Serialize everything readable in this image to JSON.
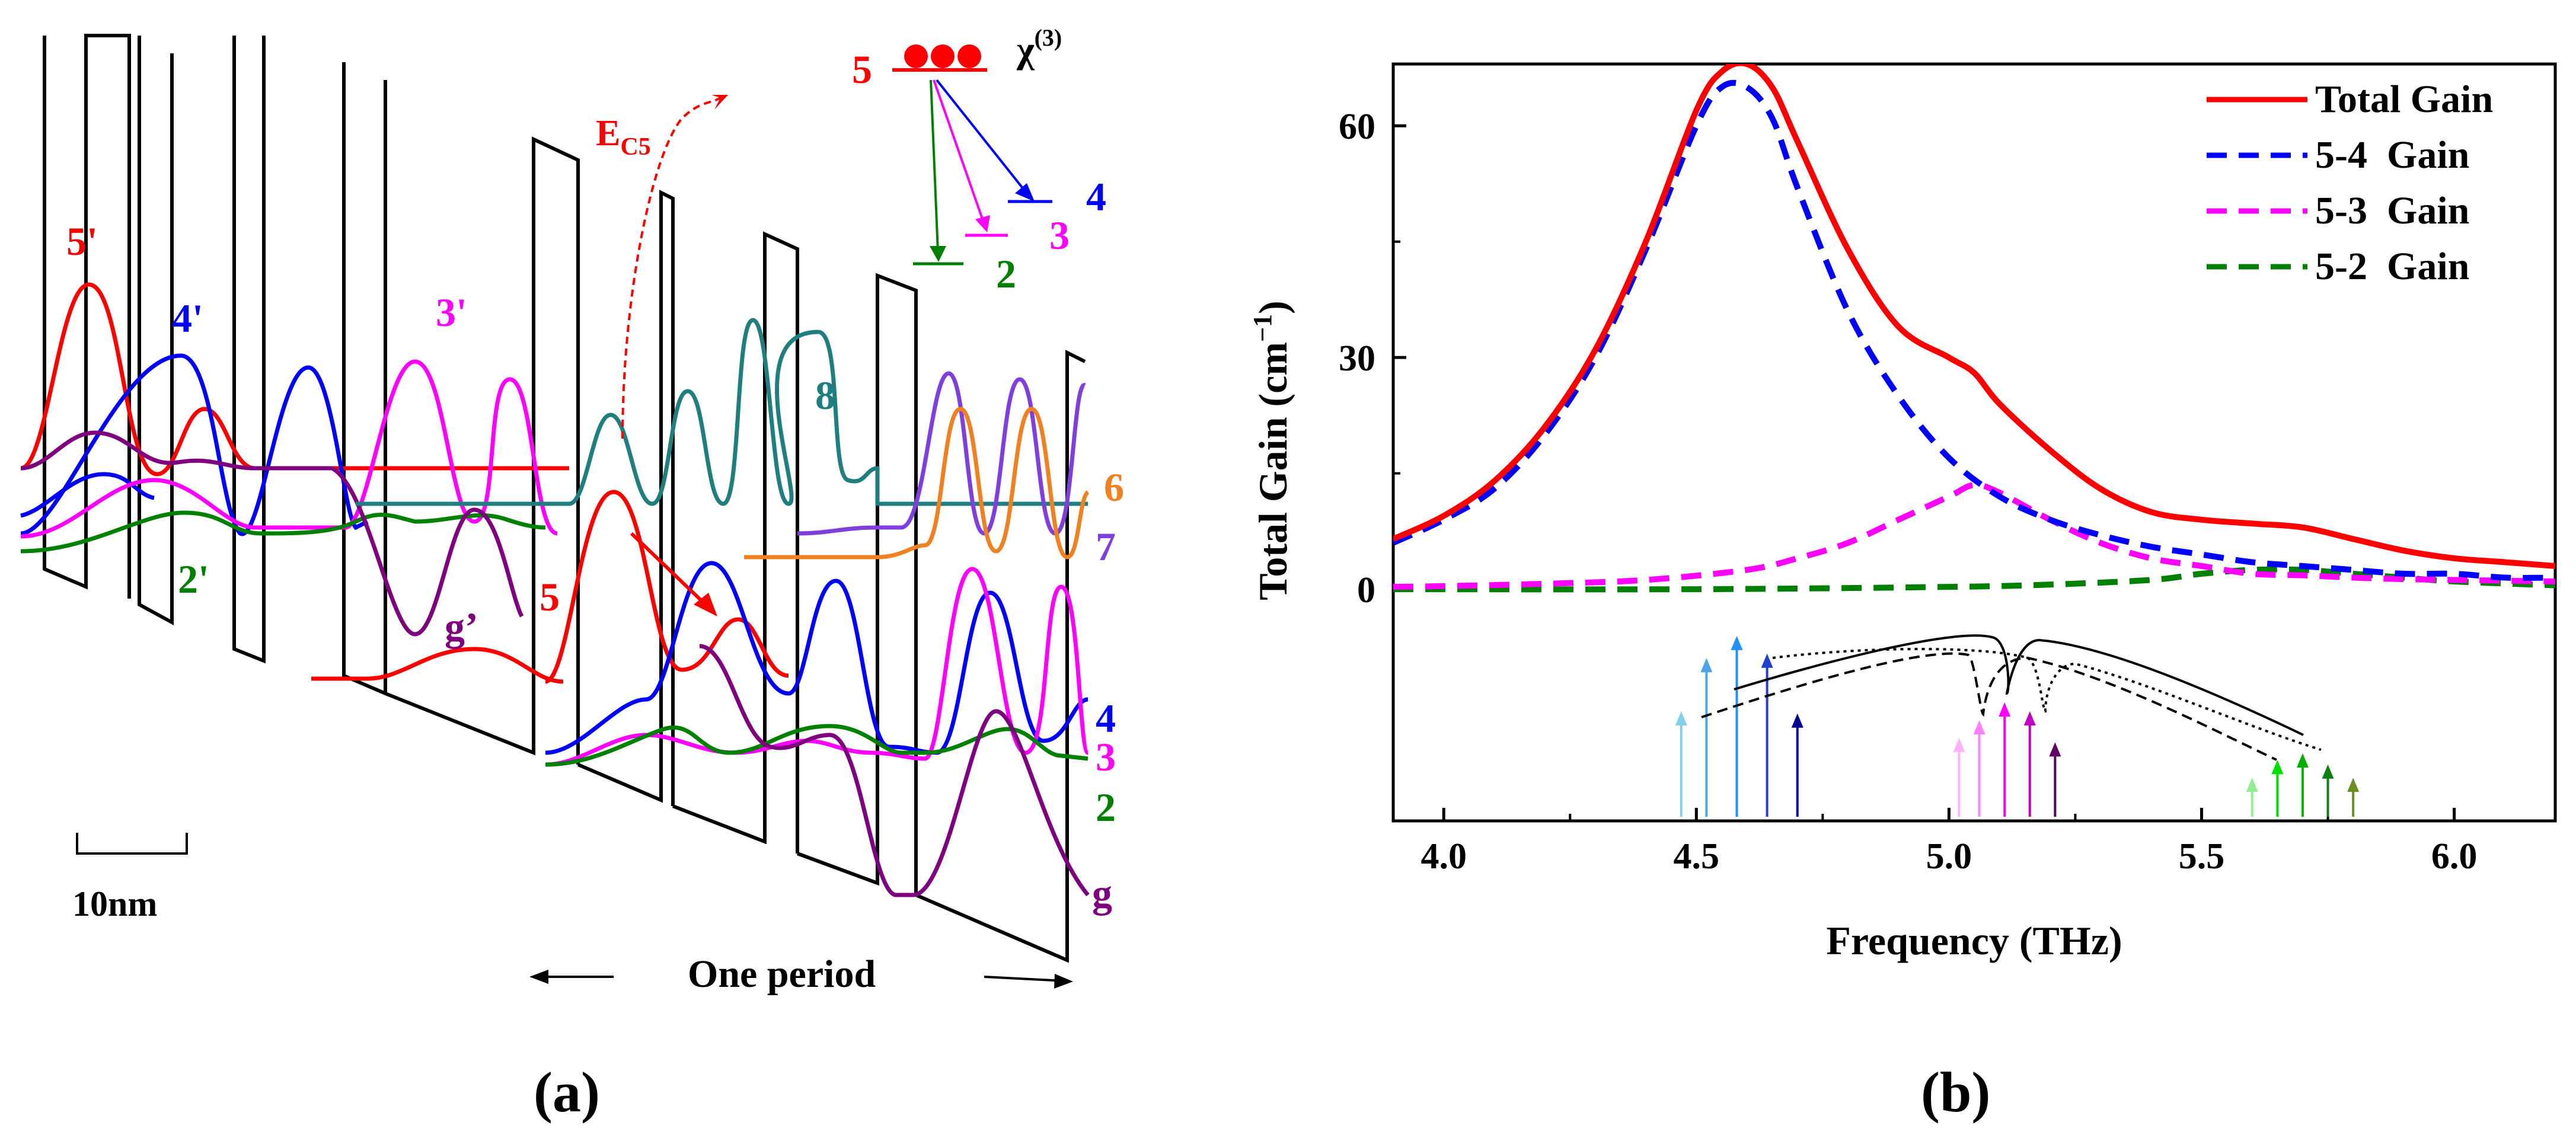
{
  "panel_a": {
    "caption": "(a)",
    "scale_bar_label": "10nm",
    "period_label": "One period",
    "ec5_label": "E",
    "ec5_sub": "C5",
    "chi_label": "χ",
    "chi_sup": "(3)",
    "inset_levels": [
      "5",
      "4",
      "3",
      "2"
    ],
    "state_labels": {
      "five_prime": "5'",
      "four_prime": "4'",
      "three_prime": "3'",
      "two_prime": "2'",
      "g_prime": "g’",
      "five": "5",
      "eight": "8",
      "six": "6",
      "seven": "7",
      "four": "4",
      "three": "3",
      "two": "2",
      "g": "g"
    },
    "colors": {
      "state5": "#ff0000",
      "state4": "#0000ff",
      "state3": "#ff00ff",
      "state2": "#008000",
      "g": "#7f007f",
      "state8": "#1f7f7f",
      "state6": "#f08020",
      "state7": "#7f3fdf"
    }
  },
  "panel_b": {
    "caption": "(b)"
  },
  "chart_data": {
    "type": "line",
    "xlabel": "Frequency (THz)",
    "ylabel": "Total Gain (cm",
    "ylabel_sup": "−1",
    "ylabel_tail": ")",
    "xlim": [
      3.9,
      6.2
    ],
    "ylim": [
      -30,
      68
    ],
    "xticks": [
      4.0,
      4.5,
      5.0,
      5.5,
      6.0
    ],
    "xtick_labels": [
      "4.0",
      "4.5",
      "5.0",
      "5.5",
      "6.0"
    ],
    "yticks": [
      0,
      30,
      60
    ],
    "ytick_labels": [
      "0",
      "30",
      "60"
    ],
    "legend_position": "top-right",
    "series": [
      {
        "name": "Total Gain",
        "color": "#ff0000",
        "style": "solid",
        "x": [
          3.9,
          4.0,
          4.1,
          4.2,
          4.3,
          4.4,
          4.5,
          4.55,
          4.6,
          4.65,
          4.7,
          4.8,
          4.9,
          5.0,
          5.05,
          5.1,
          5.2,
          5.3,
          5.4,
          5.5,
          5.6,
          5.7,
          5.8,
          5.9,
          6.0,
          6.1,
          6.2
        ],
        "y": [
          6.5,
          9.5,
          14,
          21,
          31,
          45,
          62,
          67,
          68,
          65,
          58,
          44,
          34,
          30,
          28,
          24,
          18,
          13,
          10,
          9,
          8.5,
          8,
          6.5,
          5,
          4,
          3.5,
          3
        ]
      },
      {
        "name": "5-4  Gain",
        "color": "#0000ff",
        "style": "dashed",
        "x": [
          3.9,
          4.0,
          4.1,
          4.2,
          4.3,
          4.4,
          4.5,
          4.55,
          4.6,
          4.65,
          4.7,
          4.8,
          4.9,
          5.0,
          5.1,
          5.2,
          5.3,
          5.4,
          5.5,
          5.6,
          5.7,
          5.8,
          5.9,
          6.0,
          6.1,
          6.2
        ],
        "y": [
          6,
          9,
          13,
          20,
          30,
          44,
          60,
          65,
          65,
          61,
          52,
          36,
          25,
          17,
          12,
          9,
          7,
          5.5,
          4.5,
          3.5,
          3,
          2.5,
          2,
          2,
          1.5,
          1.5
        ]
      },
      {
        "name": "5-3  Gain",
        "color": "#ff00ff",
        "style": "dashed",
        "x": [
          3.9,
          4.0,
          4.2,
          4.4,
          4.6,
          4.7,
          4.8,
          4.9,
          5.0,
          5.05,
          5.1,
          5.2,
          5.3,
          5.4,
          5.5,
          5.6,
          5.7,
          5.8,
          5.9,
          6.0,
          6.2
        ],
        "y": [
          0.3,
          0.4,
          0.7,
          1.2,
          2.5,
          4,
          6,
          9,
          12,
          13.5,
          12.5,
          9,
          6,
          4,
          3,
          2,
          1.8,
          1.5,
          1.3,
          1.2,
          1.0
        ]
      },
      {
        "name": "5-2  Gain",
        "color": "#008000",
        "style": "dashed",
        "x": [
          3.9,
          4.5,
          5.0,
          5.2,
          5.4,
          5.5,
          5.6,
          5.7,
          5.8,
          5.9,
          6.0,
          6.2
        ],
        "y": [
          0,
          0,
          0.3,
          0.6,
          1.2,
          2,
          2.5,
          2.5,
          2.0,
          1.5,
          1.0,
          0.5
        ]
      }
    ],
    "line_arrows": [
      {
        "x": 4.47,
        "height": 0.46,
        "color": "#87ceeb"
      },
      {
        "x": 4.52,
        "height": 0.7,
        "color": "#4aa8e8"
      },
      {
        "x": 4.58,
        "height": 0.8,
        "color": "#1e90ff"
      },
      {
        "x": 4.64,
        "height": 0.72,
        "color": "#2040d0"
      },
      {
        "x": 4.7,
        "height": 0.45,
        "color": "#000090"
      },
      {
        "x": 5.02,
        "height": 0.34,
        "color": "#ffb0ff"
      },
      {
        "x": 5.06,
        "height": 0.42,
        "color": "#ff80ff"
      },
      {
        "x": 5.11,
        "height": 0.5,
        "color": "#ff00ff"
      },
      {
        "x": 5.16,
        "height": 0.46,
        "color": "#c000c0"
      },
      {
        "x": 5.21,
        "height": 0.32,
        "color": "#600060"
      },
      {
        "x": 5.6,
        "height": 0.16,
        "color": "#90ee90"
      },
      {
        "x": 5.65,
        "height": 0.24,
        "color": "#00e000"
      },
      {
        "x": 5.7,
        "height": 0.27,
        "color": "#00b000"
      },
      {
        "x": 5.75,
        "height": 0.22,
        "color": "#108010"
      },
      {
        "x": 5.8,
        "height": 0.16,
        "color": "#6b8e23"
      }
    ]
  }
}
